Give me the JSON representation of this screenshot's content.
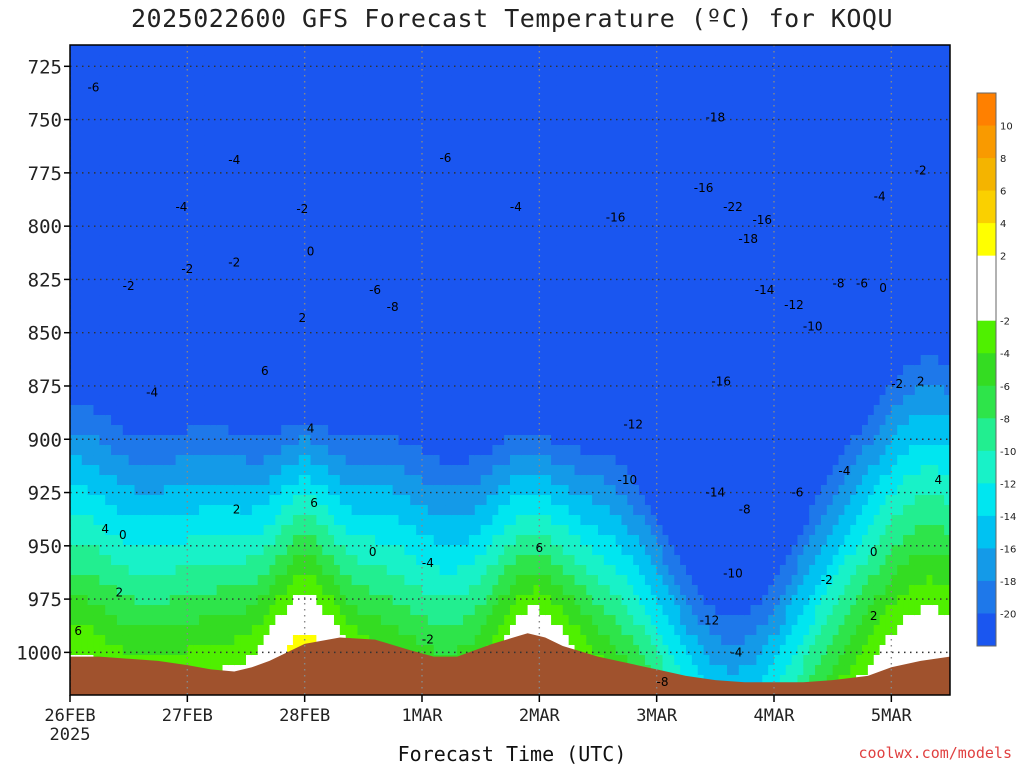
{
  "title": "2025022600 GFS Forecast Temperature (ºC) for KOQU",
  "credit": "coolwx.com/models",
  "chart_data": {
    "type": "heatmap",
    "title": "2025022600 GFS Forecast Temperature (ºC) for KOQU",
    "xlabel": "Forecast Time (UTC)",
    "ylabel": "",
    "x_unit": "days from 26FEB 00Z",
    "xlim": [
      0,
      7.5
    ],
    "ylim": [
      1020,
      715
    ],
    "xticks": [
      {
        "value": 0,
        "label": "26FEB",
        "sublabel": "2025"
      },
      {
        "value": 1,
        "label": "27FEB"
      },
      {
        "value": 2,
        "label": "28FEB"
      },
      {
        "value": 3,
        "label": "1MAR"
      },
      {
        "value": 4,
        "label": "2MAR"
      },
      {
        "value": 5,
        "label": "3MAR"
      },
      {
        "value": 6,
        "label": "4MAR"
      },
      {
        "value": 7,
        "label": "5MAR"
      }
    ],
    "yticks": [
      725,
      750,
      775,
      800,
      825,
      850,
      875,
      900,
      925,
      950,
      975,
      1000
    ],
    "grid": true,
    "legend": {
      "position": "right",
      "levels": [
        {
          "label": "10",
          "value": 10,
          "color": "#ff8000"
        },
        {
          "label": "8",
          "value": 8,
          "color": "#f99a00"
        },
        {
          "label": "6",
          "value": 6,
          "color": "#f4b400"
        },
        {
          "label": "4",
          "value": 4,
          "color": "#fad000"
        },
        {
          "label": "2",
          "value": 2,
          "color": "#ffff00"
        },
        {
          "label": "",
          "value": 0,
          "color": "#ffffff"
        },
        {
          "label": "-2",
          "value": -2,
          "color": "#ffffff"
        },
        {
          "label": "-4",
          "value": -4,
          "color": "#4ff000"
        },
        {
          "label": "-6",
          "value": -6,
          "color": "#34dc22"
        },
        {
          "label": "-8",
          "value": -8,
          "color": "#2ee44a"
        },
        {
          "label": "-10",
          "value": -10,
          "color": "#22ee90"
        },
        {
          "label": "-12",
          "value": -12,
          "color": "#18f2c8"
        },
        {
          "label": "-14",
          "value": -14,
          "color": "#00e6f0"
        },
        {
          "label": "-16",
          "value": -16,
          "color": "#00c2f2"
        },
        {
          "label": "-18",
          "value": -18,
          "color": "#149ae8"
        },
        {
          "label": "-20",
          "value": -20,
          "color": "#1e78ea"
        },
        {
          "label": "",
          "value": -22,
          "color": "#1a56f0"
        }
      ]
    },
    "terrain_color": "#a0522d",
    "terrain": [
      {
        "x": 0,
        "p": 1002
      },
      {
        "x": 0.25,
        "p": 1002
      },
      {
        "x": 0.5,
        "p": 1003
      },
      {
        "x": 0.75,
        "p": 1004
      },
      {
        "x": 1.0,
        "p": 1006
      },
      {
        "x": 1.2,
        "p": 1008
      },
      {
        "x": 1.4,
        "p": 1009
      },
      {
        "x": 1.55,
        "p": 1007
      },
      {
        "x": 1.7,
        "p": 1004
      },
      {
        "x": 2.0,
        "p": 996
      },
      {
        "x": 2.3,
        "p": 993
      },
      {
        "x": 2.6,
        "p": 994
      },
      {
        "x": 2.9,
        "p": 999
      },
      {
        "x": 3.1,
        "p": 1002
      },
      {
        "x": 3.3,
        "p": 1002
      },
      {
        "x": 3.6,
        "p": 996
      },
      {
        "x": 3.9,
        "p": 991
      },
      {
        "x": 4.05,
        "p": 993
      },
      {
        "x": 4.2,
        "p": 997
      },
      {
        "x": 4.5,
        "p": 1002
      },
      {
        "x": 4.75,
        "p": 1005
      },
      {
        "x": 5.0,
        "p": 1008
      },
      {
        "x": 5.25,
        "p": 1011
      },
      {
        "x": 5.5,
        "p": 1013
      },
      {
        "x": 5.75,
        "p": 1014
      },
      {
        "x": 6.0,
        "p": 1014
      },
      {
        "x": 6.25,
        "p": 1014
      },
      {
        "x": 6.5,
        "p": 1013
      },
      {
        "x": 6.8,
        "p": 1011
      },
      {
        "x": 7.0,
        "p": 1007
      },
      {
        "x": 7.25,
        "p": 1004
      },
      {
        "x": 7.5,
        "p": 1002
      }
    ],
    "contour_labels": [
      {
        "x": 0.2,
        "p": 735,
        "label": "-6"
      },
      {
        "x": 0.5,
        "p": 828,
        "label": "-2"
      },
      {
        "x": 1.0,
        "p": 820,
        "label": "-2"
      },
      {
        "x": 1.4,
        "p": 817,
        "label": "-2"
      },
      {
        "x": 0.95,
        "p": 791,
        "label": "-4"
      },
      {
        "x": 1.4,
        "p": 769,
        "label": "-4"
      },
      {
        "x": 0.7,
        "p": 878,
        "label": "-4"
      },
      {
        "x": 1.98,
        "p": 792,
        "label": "-2"
      },
      {
        "x": 2.05,
        "p": 812,
        "label": "0"
      },
      {
        "x": 1.98,
        "p": 843,
        "label": "2"
      },
      {
        "x": 2.05,
        "p": 895,
        "label": "4"
      },
      {
        "x": 1.66,
        "p": 868,
        "label": "6"
      },
      {
        "x": 2.08,
        "p": 930,
        "label": "6"
      },
      {
        "x": 1.42,
        "p": 933,
        "label": "2"
      },
      {
        "x": 0.45,
        "p": 945,
        "label": "0"
      },
      {
        "x": 0.3,
        "p": 942,
        "label": "4"
      },
      {
        "x": 0.42,
        "p": 972,
        "label": "2"
      },
      {
        "x": 0.07,
        "p": 990,
        "label": "6"
      },
      {
        "x": 2.6,
        "p": 830,
        "label": "-6"
      },
      {
        "x": 2.75,
        "p": 838,
        "label": "-8"
      },
      {
        "x": 3.2,
        "p": 768,
        "label": "-6"
      },
      {
        "x": 3.8,
        "p": 791,
        "label": "-4"
      },
      {
        "x": 2.58,
        "p": 953,
        "label": "0"
      },
      {
        "x": 3.05,
        "p": 958,
        "label": "-4"
      },
      {
        "x": 3.05,
        "p": 994,
        "label": "-2"
      },
      {
        "x": 4.0,
        "p": 951,
        "label": "6"
      },
      {
        "x": 4.65,
        "p": 796,
        "label": "-16"
      },
      {
        "x": 5.5,
        "p": 749,
        "label": "-18"
      },
      {
        "x": 5.4,
        "p": 782,
        "label": "-16"
      },
      {
        "x": 5.9,
        "p": 797,
        "label": "-16"
      },
      {
        "x": 5.78,
        "p": 806,
        "label": "-18"
      },
      {
        "x": 5.65,
        "p": 791,
        "label": "-22"
      },
      {
        "x": 5.92,
        "p": 830,
        "label": "-14"
      },
      {
        "x": 6.17,
        "p": 837,
        "label": "-12"
      },
      {
        "x": 6.33,
        "p": 847,
        "label": "-10"
      },
      {
        "x": 6.55,
        "p": 827,
        "label": "-8"
      },
      {
        "x": 6.75,
        "p": 827,
        "label": "-6"
      },
      {
        "x": 6.93,
        "p": 829,
        "label": "0"
      },
      {
        "x": 6.9,
        "p": 786,
        "label": "-4"
      },
      {
        "x": 7.25,
        "p": 774,
        "label": "-2"
      },
      {
        "x": 5.55,
        "p": 873,
        "label": "-16"
      },
      {
        "x": 4.8,
        "p": 893,
        "label": "-12"
      },
      {
        "x": 4.75,
        "p": 919,
        "label": "-10"
      },
      {
        "x": 5.5,
        "p": 925,
        "label": "-14"
      },
      {
        "x": 5.75,
        "p": 933,
        "label": "-8"
      },
      {
        "x": 6.2,
        "p": 925,
        "label": "-6"
      },
      {
        "x": 6.6,
        "p": 915,
        "label": "-4"
      },
      {
        "x": 6.85,
        "p": 953,
        "label": "0"
      },
      {
        "x": 6.45,
        "p": 966,
        "label": "-2"
      },
      {
        "x": 6.85,
        "p": 983,
        "label": "2"
      },
      {
        "x": 7.05,
        "p": 874,
        "label": "-2"
      },
      {
        "x": 7.25,
        "p": 873,
        "label": "2"
      },
      {
        "x": 7.4,
        "p": 919,
        "label": "4"
      },
      {
        "x": 5.65,
        "p": 963,
        "label": "-10"
      },
      {
        "x": 5.45,
        "p": 985,
        "label": "-12"
      },
      {
        "x": 5.68,
        "p": 1000,
        "label": "-4"
      },
      {
        "x": 5.05,
        "p": 1014,
        "label": "-8"
      }
    ]
  }
}
